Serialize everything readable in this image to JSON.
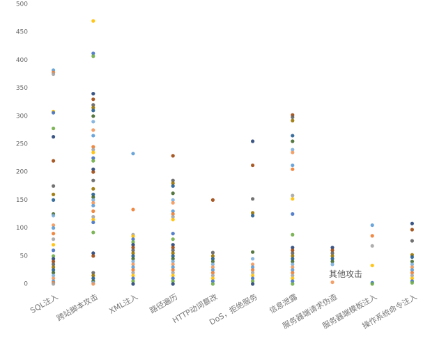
{
  "chart_data": {
    "type": "strip",
    "categories": [
      "SQL注入",
      "跨站脚本攻击",
      "XML注入",
      "路径遍历",
      "HTTP动词篡改",
      "DoS，拒绝服务",
      "信息泄露",
      "服务器端请求伪造",
      "服务器端模板注入",
      "操作系统命令注入"
    ],
    "values": [
      [
        382,
        378,
        375,
        308,
        306,
        278,
        263,
        220,
        175,
        160,
        150,
        125,
        122,
        105,
        100,
        90,
        80,
        70,
        60,
        50,
        45,
        40,
        35,
        30,
        25,
        20,
        15,
        10,
        5,
        2,
        0
      ],
      [
        470,
        412,
        407,
        340,
        330,
        320,
        315,
        310,
        300,
        290,
        275,
        265,
        245,
        240,
        235,
        225,
        220,
        205,
        200,
        185,
        170,
        160,
        155,
        150,
        145,
        140,
        130,
        120,
        115,
        110,
        92,
        55,
        50,
        20,
        15,
        10,
        5,
        2,
        0
      ],
      [
        233,
        133,
        88,
        85,
        80,
        75,
        70,
        65,
        60,
        55,
        50,
        45,
        40,
        35,
        30,
        25,
        20,
        15,
        10,
        5,
        0
      ],
      [
        229,
        185,
        180,
        175,
        162,
        150,
        145,
        130,
        125,
        120,
        115,
        90,
        80,
        70,
        65,
        60,
        55,
        50,
        45,
        40,
        35,
        30,
        25,
        20,
        15,
        10,
        5,
        0
      ],
      [
        150,
        56,
        50,
        45,
        40,
        35,
        30,
        25,
        20,
        15,
        10,
        5,
        0
      ],
      [
        255,
        212,
        152,
        127,
        122,
        57,
        45,
        35,
        30,
        25,
        20,
        15,
        10,
        5,
        0
      ],
      [
        302,
        298,
        292,
        265,
        255,
        240,
        235,
        212,
        205,
        158,
        152,
        125,
        88,
        65,
        60,
        55,
        50,
        45,
        40,
        35,
        30,
        25,
        20,
        15,
        10,
        5,
        0
      ],
      [
        65,
        60,
        55,
        50,
        45,
        40,
        35,
        3
      ],
      [
        105,
        86,
        68,
        33,
        2,
        0
      ],
      [
        108,
        97,
        77,
        52,
        48,
        40,
        35,
        30,
        25,
        20,
        15,
        10,
        5,
        2
      ]
    ],
    "colors": [
      "#5b9bd5",
      "#ed7d31",
      "#a5a5a5",
      "#ffc000",
      "#4472c4",
      "#70ad47",
      "#264478",
      "#9e480e",
      "#636363",
      "#997300",
      "#255e91",
      "#43682b",
      "#7cafdd",
      "#f1975a"
    ],
    "annotation": "其他攻击",
    "ylim": [
      0,
      500
    ],
    "yticks": [
      0,
      50,
      100,
      150,
      200,
      250,
      300,
      350,
      400,
      450,
      500
    ],
    "grid": false
  }
}
